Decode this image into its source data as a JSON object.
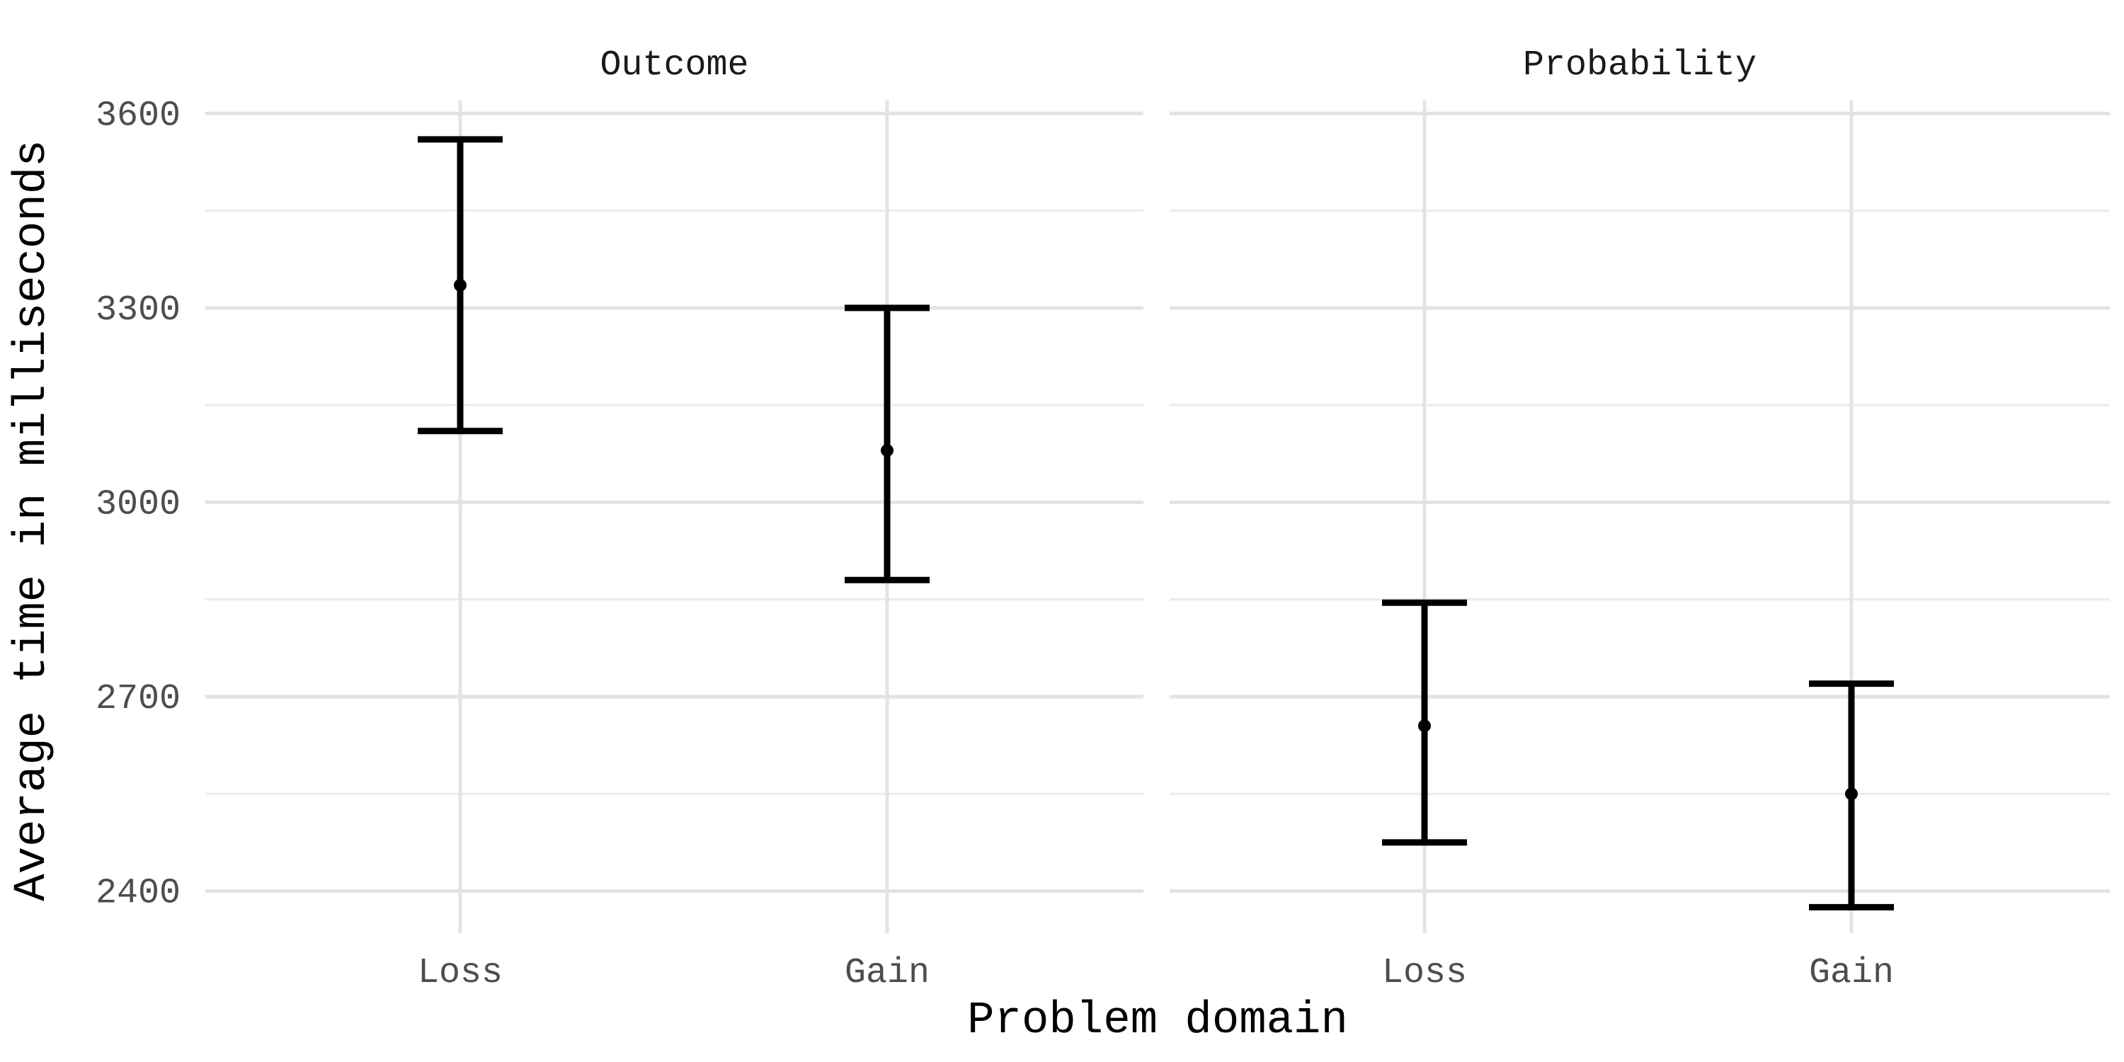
{
  "chart_data": {
    "type": "errorbar",
    "xlabel": "Problem domain",
    "ylabel": "Average time in milliseconds",
    "ylim": [
      2335,
      3620
    ],
    "yticks": [
      2400,
      2700,
      3000,
      3300,
      3600
    ],
    "y_minor": [
      2550,
      2850,
      3150,
      3450
    ],
    "grid": true,
    "categories": [
      "Loss",
      "Gain"
    ],
    "panels": [
      {
        "title": "Outcome",
        "points": [
          {
            "category": "Loss",
            "mean": 3335,
            "lower": 3110,
            "upper": 3560
          },
          {
            "category": "Gain",
            "mean": 3080,
            "lower": 2880,
            "upper": 3300
          }
        ]
      },
      {
        "title": "Probability",
        "points": [
          {
            "category": "Loss",
            "mean": 2655,
            "lower": 2475,
            "upper": 2845
          },
          {
            "category": "Gain",
            "mean": 2550,
            "lower": 2375,
            "upper": 2720
          }
        ]
      }
    ]
  }
}
